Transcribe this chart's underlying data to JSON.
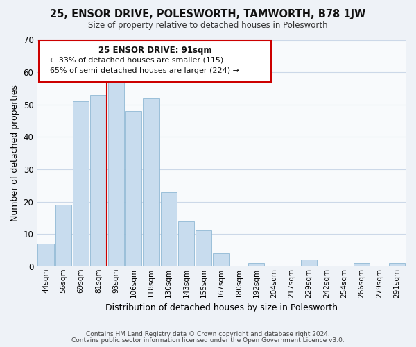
{
  "title": "25, ENSOR DRIVE, POLESWORTH, TAMWORTH, B78 1JW",
  "subtitle": "Size of property relative to detached houses in Polesworth",
  "xlabel": "Distribution of detached houses by size in Polesworth",
  "ylabel": "Number of detached properties",
  "bar_labels": [
    "44sqm",
    "56sqm",
    "69sqm",
    "81sqm",
    "93sqm",
    "106sqm",
    "118sqm",
    "130sqm",
    "143sqm",
    "155sqm",
    "167sqm",
    "180sqm",
    "192sqm",
    "204sqm",
    "217sqm",
    "229sqm",
    "242sqm",
    "254sqm",
    "266sqm",
    "279sqm",
    "291sqm"
  ],
  "bar_values": [
    7,
    19,
    51,
    53,
    57,
    48,
    52,
    23,
    14,
    11,
    4,
    0,
    1,
    0,
    0,
    2,
    0,
    0,
    1,
    0,
    1
  ],
  "bar_color": "#c8dcee",
  "bar_edge_color": "#90b8d4",
  "vline_x_index": 3,
  "vline_color": "#cc0000",
  "annotation_title": "25 ENSOR DRIVE: 91sqm",
  "annotation_line1": "← 33% of detached houses are smaller (115)",
  "annotation_line2": "65% of semi-detached houses are larger (224) →",
  "annotation_box_color": "#ffffff",
  "annotation_box_edgecolor": "#cc0000",
  "ylim": [
    0,
    70
  ],
  "yticks": [
    0,
    10,
    20,
    30,
    40,
    50,
    60,
    70
  ],
  "footer1": "Contains HM Land Registry data © Crown copyright and database right 2024.",
  "footer2": "Contains public sector information licensed under the Open Government Licence v3.0.",
  "background_color": "#eef2f7",
  "plot_background": "#f8fafc",
  "grid_color": "#ccd8e8"
}
